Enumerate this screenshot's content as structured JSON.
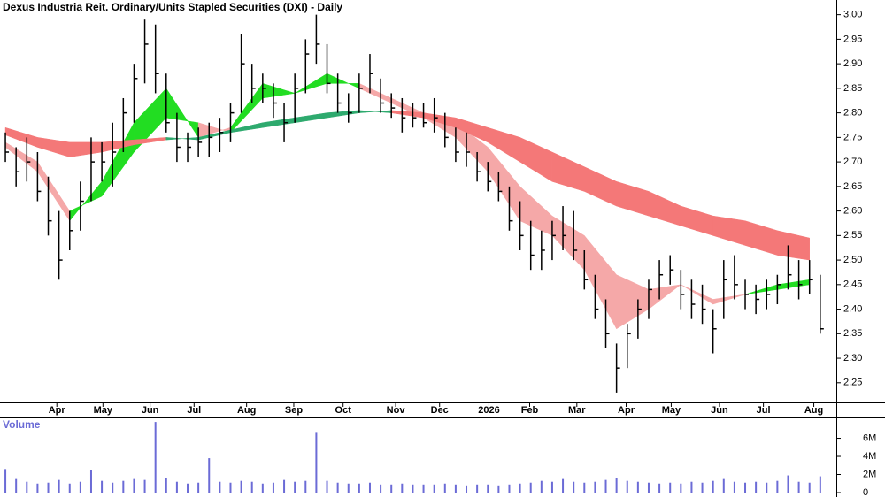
{
  "chart_data": [
    {
      "type": "ohlc",
      "title": "Dexus Industria Reit. Ordinary/Units Stapled Securities (DXI) - Daily",
      "color": "#000000",
      "x": [
        0,
        1,
        2,
        3,
        4,
        5,
        6,
        7,
        8,
        9,
        10,
        11,
        12,
        13,
        14,
        15,
        16,
        17,
        18,
        19,
        20,
        21,
        22,
        23,
        24,
        25,
        26,
        27,
        28,
        29,
        30,
        31,
        32,
        33,
        34,
        35,
        36,
        37,
        38,
        39,
        40,
        41,
        42,
        43,
        44,
        45,
        46,
        47,
        48,
        49,
        50,
        51,
        52,
        53,
        54,
        55,
        56,
        57,
        58,
        59,
        60,
        61,
        62,
        63,
        64,
        65,
        66,
        67,
        68,
        69,
        70,
        71,
        72,
        73,
        74,
        75,
        76
      ],
      "high": [
        2.76,
        2.73,
        2.75,
        2.72,
        2.67,
        2.6,
        2.6,
        2.66,
        2.75,
        2.74,
        2.78,
        2.83,
        2.9,
        2.99,
        2.98,
        2.88,
        2.8,
        2.76,
        2.77,
        2.78,
        2.79,
        2.82,
        2.96,
        2.9,
        2.88,
        2.86,
        2.82,
        2.88,
        2.95,
        3.0,
        2.94,
        2.88,
        2.84,
        2.88,
        2.92,
        2.87,
        2.84,
        2.83,
        2.82,
        2.82,
        2.83,
        2.8,
        2.77,
        2.76,
        2.72,
        2.7,
        2.68,
        2.65,
        2.62,
        2.58,
        2.56,
        2.58,
        2.61,
        2.6,
        2.52,
        2.47,
        2.42,
        2.33,
        2.37,
        2.42,
        2.46,
        2.5,
        2.51,
        2.48,
        2.46,
        2.45,
        2.4,
        2.5,
        2.51,
        2.46,
        2.45,
        2.46,
        2.47,
        2.53,
        2.5,
        2.5,
        2.47
      ],
      "low": [
        2.7,
        2.65,
        2.66,
        2.62,
        2.55,
        2.46,
        2.52,
        2.56,
        2.62,
        2.66,
        2.65,
        2.72,
        2.78,
        2.86,
        2.84,
        2.76,
        2.7,
        2.7,
        2.71,
        2.71,
        2.72,
        2.74,
        2.8,
        2.82,
        2.82,
        2.79,
        2.74,
        2.78,
        2.84,
        2.9,
        2.84,
        2.8,
        2.78,
        2.8,
        2.84,
        2.8,
        2.79,
        2.76,
        2.77,
        2.77,
        2.76,
        2.73,
        2.7,
        2.69,
        2.66,
        2.64,
        2.62,
        2.56,
        2.52,
        2.48,
        2.48,
        2.5,
        2.52,
        2.5,
        2.44,
        2.38,
        2.32,
        2.23,
        2.28,
        2.34,
        2.38,
        2.42,
        2.45,
        2.4,
        2.38,
        2.37,
        2.31,
        2.38,
        2.42,
        2.4,
        2.39,
        2.4,
        2.41,
        2.44,
        2.42,
        2.43,
        2.35
      ],
      "close": [
        2.72,
        2.68,
        2.7,
        2.64,
        2.58,
        2.5,
        2.56,
        2.62,
        2.7,
        2.7,
        2.72,
        2.8,
        2.87,
        2.94,
        2.88,
        2.78,
        2.73,
        2.73,
        2.74,
        2.75,
        2.76,
        2.8,
        2.9,
        2.85,
        2.85,
        2.82,
        2.78,
        2.85,
        2.92,
        2.94,
        2.86,
        2.82,
        2.8,
        2.85,
        2.88,
        2.82,
        2.81,
        2.79,
        2.79,
        2.78,
        2.79,
        2.75,
        2.72,
        2.72,
        2.68,
        2.66,
        2.64,
        2.58,
        2.55,
        2.51,
        2.52,
        2.55,
        2.55,
        2.52,
        2.46,
        2.4,
        2.35,
        2.28,
        2.35,
        2.4,
        2.44,
        2.47,
        2.48,
        2.43,
        2.41,
        2.4,
        2.36,
        2.46,
        2.45,
        2.43,
        2.42,
        2.43,
        2.45,
        2.47,
        2.45,
        2.46,
        2.36
      ],
      "bands": [
        {
          "x": [
            0,
            3,
            6,
            9,
            12,
            15,
            18,
            21,
            24,
            27,
            30,
            33,
            36,
            39,
            42,
            45,
            48,
            51,
            54,
            57,
            60,
            63,
            66,
            69,
            72,
            75
          ],
          "fast": [
            2.73,
            2.68,
            2.58,
            2.66,
            2.78,
            2.85,
            2.75,
            2.77,
            2.86,
            2.84,
            2.88,
            2.85,
            2.82,
            2.79,
            2.75,
            2.68,
            2.58,
            2.55,
            2.48,
            2.36,
            2.4,
            2.45,
            2.41,
            2.43,
            2.45,
            2.46
          ],
          "slow": [
            2.74,
            2.7,
            2.6,
            2.63,
            2.72,
            2.79,
            2.78,
            2.76,
            2.83,
            2.84,
            2.86,
            2.86,
            2.83,
            2.8,
            2.78,
            2.73,
            2.65,
            2.59,
            2.55,
            2.47,
            2.44,
            2.45,
            2.42,
            2.43,
            2.44,
            2.45
          ],
          "up_color": "#22dd22",
          "down_color": "#f5a8a8"
        },
        {
          "x": [
            0,
            3,
            6,
            9,
            12,
            15,
            18,
            21,
            24,
            27,
            30,
            33,
            36,
            39,
            42,
            45,
            48,
            51,
            54,
            57,
            60,
            63,
            66,
            69,
            72,
            75
          ],
          "fast": [
            2.755,
            2.73,
            2.71,
            2.72,
            2.735,
            2.745,
            2.75,
            2.765,
            2.78,
            2.79,
            2.8,
            2.805,
            2.8,
            2.79,
            2.77,
            2.74,
            2.7,
            2.66,
            2.64,
            2.61,
            2.59,
            2.57,
            2.55,
            2.53,
            2.51,
            2.5
          ],
          "slow": [
            2.77,
            2.75,
            2.74,
            2.74,
            2.745,
            2.75,
            2.745,
            2.76,
            2.77,
            2.78,
            2.79,
            2.8,
            2.805,
            2.8,
            2.79,
            2.77,
            2.75,
            2.72,
            2.69,
            2.66,
            2.64,
            2.61,
            2.59,
            2.58,
            2.56,
            2.545
          ],
          "up_color": "#2eaa6e",
          "down_color": "#f47878"
        }
      ],
      "xlim": [
        -0.5,
        77.5
      ],
      "xticks": [
        {
          "value": 4.8,
          "label": "Apr"
        },
        {
          "value": 9.1,
          "label": "May"
        },
        {
          "value": 13.5,
          "label": "Jun"
        },
        {
          "value": 17.6,
          "label": "Jul"
        },
        {
          "value": 22.5,
          "label": "Aug"
        },
        {
          "value": 26.9,
          "label": "Sep"
        },
        {
          "value": 31.5,
          "label": "Oct"
        },
        {
          "value": 36.4,
          "label": "Nov"
        },
        {
          "value": 40.5,
          "label": "Dec"
        },
        {
          "value": 45.1,
          "label": "2026"
        },
        {
          "value": 48.9,
          "label": "Feb"
        },
        {
          "value": 53.3,
          "label": "Mar"
        },
        {
          "value": 57.9,
          "label": "Apr"
        },
        {
          "value": 62.1,
          "label": "May"
        },
        {
          "value": 66.6,
          "label": "Jun"
        },
        {
          "value": 70.7,
          "label": "Jul"
        },
        {
          "value": 75.4,
          "label": "Aug"
        }
      ],
      "ylim": [
        2.21,
        3.03
      ],
      "yticks": [
        2.25,
        {
          "value": 2.3,
          "label": "2.30"
        },
        2.35,
        {
          "value": 2.4,
          "label": "2.40"
        },
        2.45,
        {
          "value": 2.5,
          "label": "2.50"
        },
        2.55,
        {
          "value": 2.6,
          "label": "2.60"
        },
        2.65,
        {
          "value": 2.7,
          "label": "2.70"
        },
        2.75,
        {
          "value": 2.8,
          "label": "2.80"
        },
        2.85,
        {
          "value": 2.9,
          "label": "2.90"
        },
        2.95,
        {
          "value": 3,
          "label": "3.00"
        }
      ]
    },
    {
      "type": "bar",
      "title": "Volume",
      "color": "#6b6bd6",
      "values": [
        2600000,
        1500000,
        1200000,
        1000000,
        1100000,
        1400000,
        1000000,
        1200000,
        2500000,
        1300000,
        1100000,
        1300000,
        1500000,
        1400000,
        7800000,
        1600000,
        1200000,
        1000000,
        1100000,
        3800000,
        1200000,
        1100000,
        1300000,
        1200000,
        1000000,
        1100000,
        1400000,
        1200000,
        1300000,
        6600000,
        1300000,
        1100000,
        1000000,
        1000000,
        1100000,
        900000,
        900000,
        1000000,
        900000,
        900000,
        900000,
        1000000,
        900000,
        800000,
        900000,
        900000,
        800000,
        900000,
        1000000,
        1100000,
        1300000,
        1200000,
        1500000,
        1200000,
        1100000,
        1200000,
        1400000,
        1600000,
        1300000,
        1200000,
        1100000,
        1000000,
        1100000,
        1000000,
        1200000,
        1100000,
        1300000,
        1500000,
        1200000,
        1100000,
        1200000,
        1100000,
        1300000,
        1900000,
        1200000,
        1100000,
        1800000
      ],
      "ylim": [
        0,
        8200000
      ],
      "yticks": [
        0,
        {
          "value": 2000000,
          "label": "2M"
        },
        {
          "value": 4000000,
          "label": "4M"
        },
        {
          "value": 6000000,
          "label": "6M"
        }
      ]
    }
  ]
}
